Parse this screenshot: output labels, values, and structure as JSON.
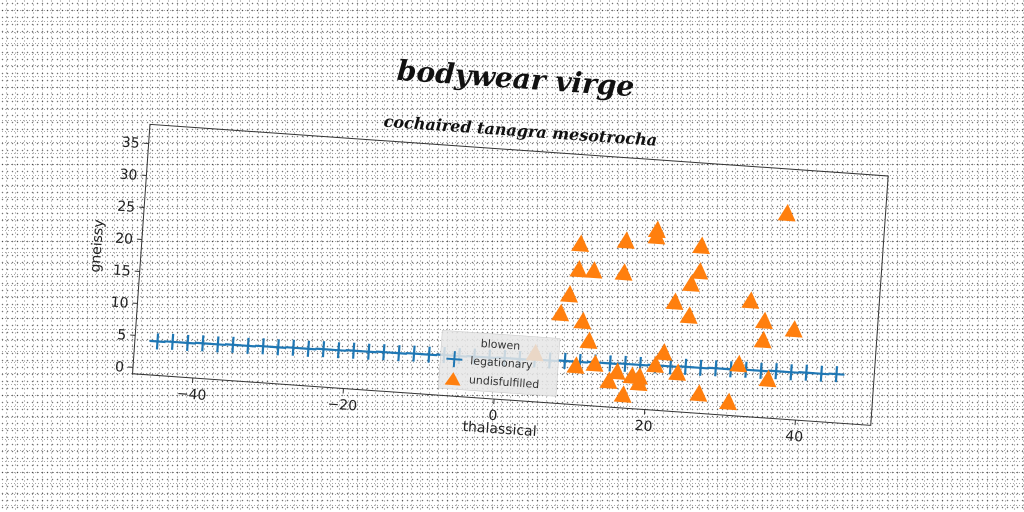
{
  "chart_data": {
    "type": "scatter",
    "title": "bodywear virge",
    "subtitle": "cochaired tanagra mesotrocha",
    "xlabel": "thalassical",
    "ylabel": "gneissy",
    "xlim": [
      -48,
      50
    ],
    "ylim": [
      -1,
      38
    ],
    "xticks": [
      -40,
      -20,
      0,
      20,
      40
    ],
    "xtick_labels": [
      "−40",
      "−20",
      "0",
      "20",
      "40"
    ],
    "yticks": [
      0,
      5,
      10,
      15,
      20,
      25,
      30,
      35
    ],
    "ytick_labels": [
      "0",
      "5",
      "10",
      "15",
      "20",
      "25",
      "30",
      "35"
    ],
    "grid": false,
    "legend": {
      "title": "blowen",
      "placement": "bottom-center",
      "entries": [
        "legationary",
        "undisfulfilled"
      ]
    },
    "series": [
      {
        "name": "legationary",
        "marker": "plus",
        "color": "#1f77b4",
        "x": [
          -45,
          -43,
          -41,
          -39,
          -37,
          -35,
          -33,
          -31,
          -29,
          -27,
          -25,
          -23,
          -21,
          -19,
          -17,
          -15,
          -13,
          -11,
          -9,
          -7,
          -5,
          -3,
          -1,
          1,
          3,
          5,
          7,
          9,
          11,
          13,
          15,
          17,
          19,
          21,
          23,
          25,
          27,
          29,
          31,
          33,
          35,
          37,
          39,
          41,
          43,
          45
        ],
        "y": [
          4.3,
          4.4,
          4.4,
          4.5,
          4.5,
          4.6,
          4.6,
          4.7,
          4.7,
          4.8,
          4.8,
          4.9,
          4.9,
          5.0,
          5.0,
          5.1,
          5.1,
          5.2,
          5.2,
          5.3,
          5.3,
          5.4,
          5.4,
          5.5,
          5.5,
          5.6,
          5.6,
          5.7,
          5.7,
          5.8,
          5.8,
          5.9,
          5.9,
          6.0,
          6.0,
          6.1,
          6.1,
          6.2,
          6.2,
          6.3,
          6.3,
          6.4,
          6.4,
          6.5,
          6.5,
          6.6
        ]
      },
      {
        "name": "undisfulfilled",
        "marker": "triangle",
        "color": "#ff7f0e",
        "x": [
          5,
          8,
          9,
          10,
          10,
          11,
          12,
          12,
          13,
          15,
          16,
          16,
          16,
          17,
          18,
          19,
          19,
          20,
          20,
          21,
          22,
          23,
          24,
          25,
          25,
          26,
          26,
          27,
          31,
          32,
          33,
          35,
          35,
          36,
          39,
          37,
          10.5
        ],
        "y": [
          6.5,
          13,
          16,
          20,
          24,
          12,
          9,
          20,
          5.5,
          3,
          4.5,
          20,
          25,
          1,
          4,
          3,
          4,
          27,
          26,
          6,
          8,
          16,
          5,
          19,
          14,
          25,
          21,
          2,
          1,
          7,
          17,
          14,
          11,
          5,
          13,
          31,
          5
        ]
      }
    ]
  }
}
